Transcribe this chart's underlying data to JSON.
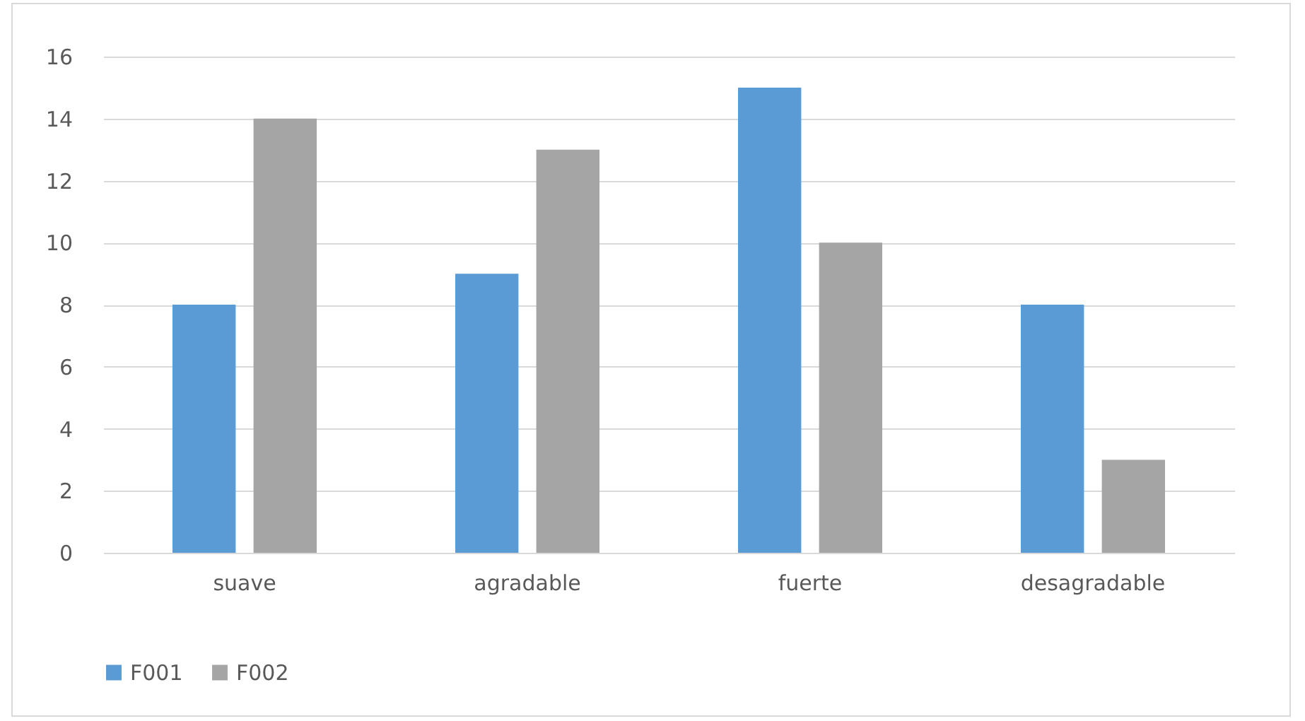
{
  "chart_data": {
    "type": "bar",
    "categories": [
      "suave",
      "agradable",
      "fuerte",
      "desagradable"
    ],
    "series": [
      {
        "name": "F001",
        "color": "#5b9bd5",
        "values": [
          8,
          9,
          15,
          8
        ]
      },
      {
        "name": "F002",
        "color": "#a5a5a5",
        "values": [
          14,
          13,
          10,
          3
        ]
      }
    ],
    "ylim": [
      0,
      16
    ],
    "yticks": [
      0,
      2,
      4,
      6,
      8,
      10,
      12,
      14,
      16
    ],
    "grid": "y",
    "legend": "bottom"
  }
}
